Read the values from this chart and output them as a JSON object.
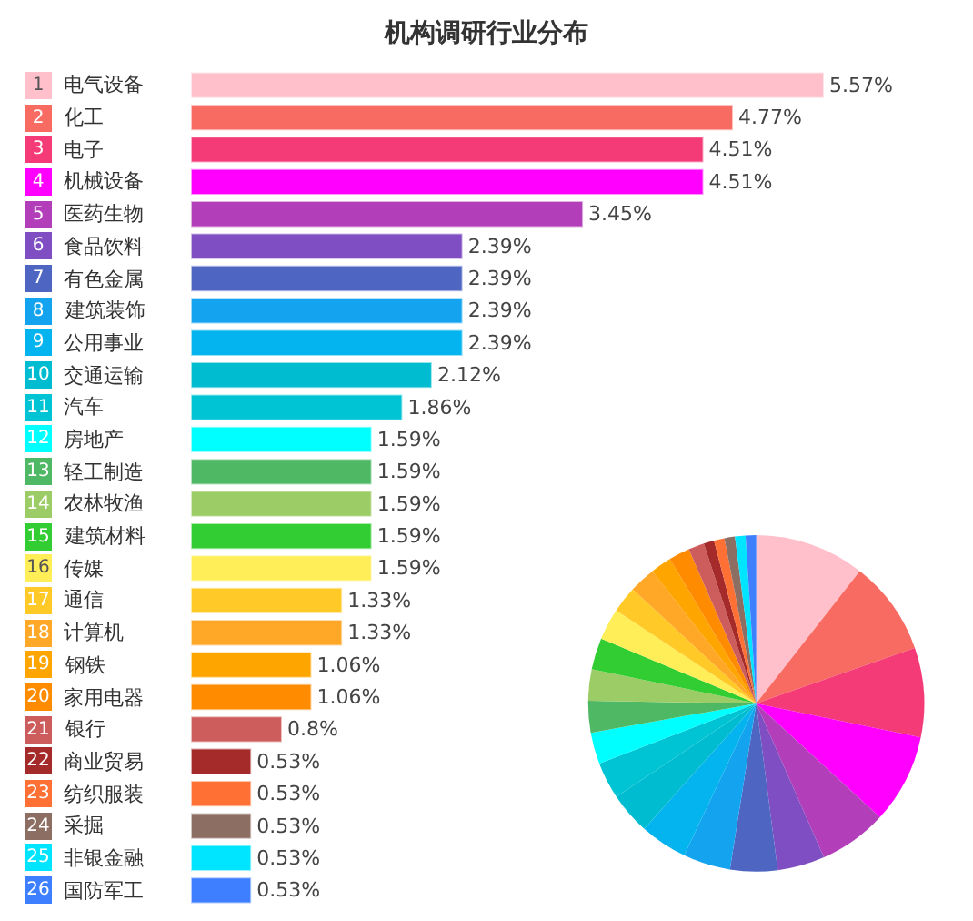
{
  "chart_data": [
    {
      "type": "bar",
      "orientation": "horizontal",
      "title": "机构调研行业分布",
      "categories": [
        "1 电气设备",
        "2 化工",
        "3 电子",
        "4 机械设备",
        "5 医药生物",
        "6 食品饮料",
        "7 有色金属",
        "8 建筑装饰",
        "9 公用事业",
        "10 交通运输",
        "11 汽车",
        "12 房地产",
        "13 轻工制造",
        "14 农林牧渔",
        "15 建筑材料",
        "16 传媒",
        "17 通信",
        "18 计算机",
        "19 钢铁",
        "20 家用电器",
        "21 银行",
        "22 商业贸易",
        "23 纺织服装",
        "24 采掘",
        "25 非银金融",
        "26 国防军工"
      ],
      "values": [
        5.57,
        4.77,
        4.51,
        4.51,
        3.45,
        2.39,
        2.39,
        2.39,
        2.39,
        2.12,
        1.86,
        1.59,
        1.59,
        1.59,
        1.59,
        1.59,
        1.33,
        1.33,
        1.06,
        1.06,
        0.8,
        0.53,
        0.53,
        0.53,
        0.53,
        0.53
      ],
      "value_labels": [
        "5.57%",
        "4.77%",
        "4.51%",
        "4.51%",
        "3.45%",
        "2.39%",
        "2.39%",
        "2.39%",
        "2.39%",
        "2.12%",
        "1.86%",
        "1.59%",
        "1.59%",
        "1.59%",
        "1.59%",
        "1.59%",
        "1.33%",
        "1.33%",
        "1.06%",
        "1.06%",
        "0.8%",
        "0.53%",
        "0.53%",
        "0.53%",
        "0.53%",
        "0.53%"
      ],
      "colors": [
        "#ffc0cb",
        "#f86b63",
        "#f43a77",
        "#ff00ff",
        "#b33eb9",
        "#7e4ec2",
        "#4e66c2",
        "#14a4ef",
        "#04b4ee",
        "#00bcd0",
        "#00c4d4",
        "#00ffff",
        "#4fb865",
        "#9ccc65",
        "#32cd32",
        "#ffee58",
        "#ffca28",
        "#ffa726",
        "#ffa500",
        "#ff8c00",
        "#cd5c5c",
        "#a52a2a",
        "#ff7034",
        "#8d6e63",
        "#00e5ff",
        "#3d7fff"
      ]
    },
    {
      "type": "pie",
      "categories": [
        null,
        null,
        null,
        null,
        null,
        null,
        null,
        null,
        null,
        null,
        null,
        null,
        null,
        null,
        null,
        null,
        null,
        null,
        null,
        null,
        null,
        null,
        null,
        null,
        null,
        null
      ],
      "values": [
        10.57,
        9.08,
        8.59,
        8.59,
        6.57,
        4.55,
        4.55,
        4.55,
        4.55,
        4.04,
        3.54,
        3.03,
        3.03,
        3.03,
        3.03,
        3.03,
        2.53,
        2.53,
        2.02,
        2.02,
        1.52,
        1.01,
        1.01,
        1.01,
        1.01,
        1.01
      ],
      "colors": [
        "#ffc0cb",
        "#f86b63",
        "#f43a77",
        "#ff00ff",
        "#b33eb9",
        "#7e4ec2",
        "#4e66c2",
        "#14a4ef",
        "#04b4ee",
        "#00bcd0",
        "#00c4d4",
        "#00ffff",
        "#4fb865",
        "#9ccc65",
        "#32cd32",
        "#ffee58",
        "#ffca28",
        "#ffa726",
        "#ffa500",
        "#ff8c00",
        "#cd5c5c",
        "#a52a2a",
        "#ff7034",
        "#8d6e63",
        "#00e5ff",
        "#3d7fff"
      ]
    }
  ]
}
